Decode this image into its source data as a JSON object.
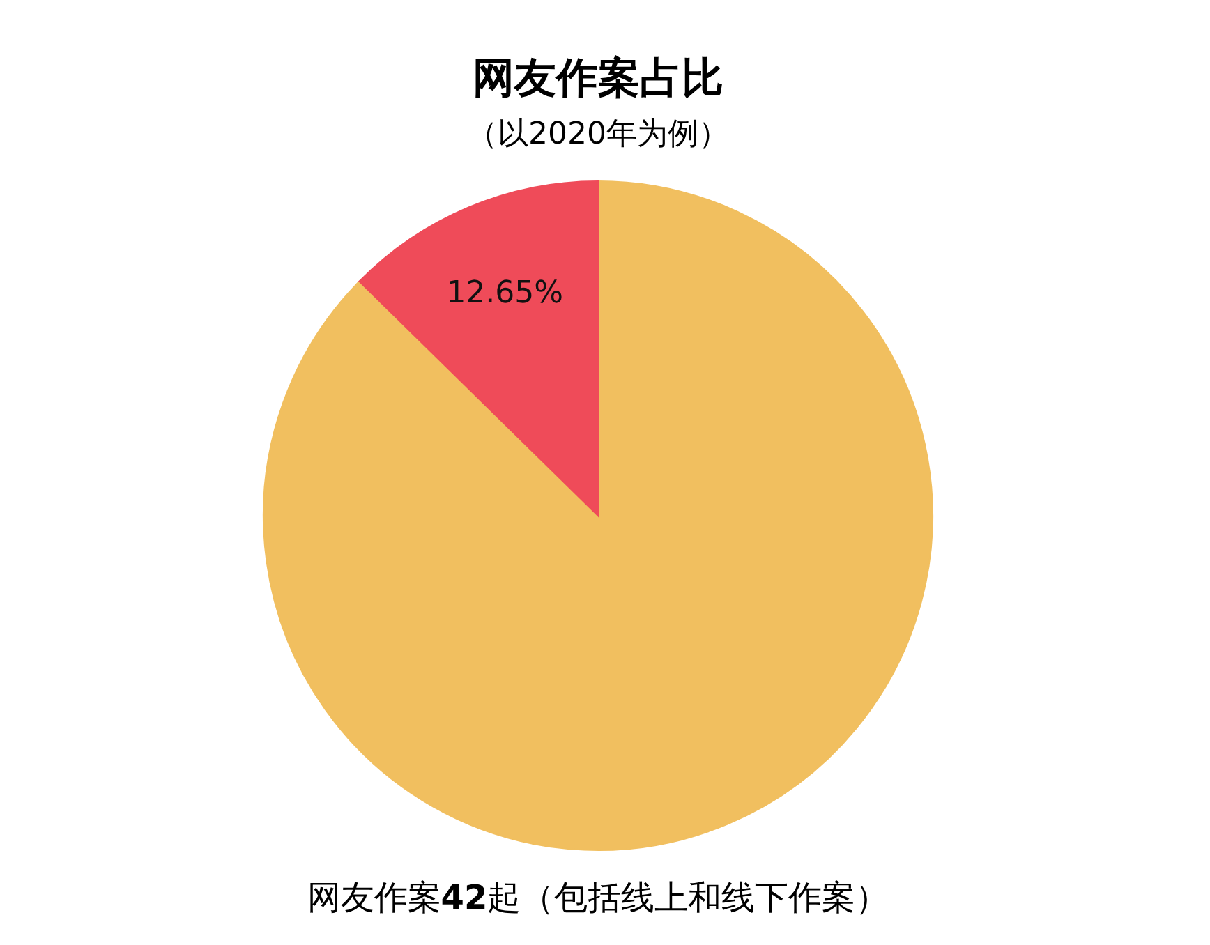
{
  "chart_data": {
    "type": "pie",
    "title": "网友作案占比",
    "subtitle": "（以2020年为例）",
    "categories": [
      null,
      null
    ],
    "values": [
      87.35,
      12.65
    ],
    "colors": [
      "#f1bf5f",
      "#ef4b59"
    ],
    "value_labels": [
      null,
      "12.65%"
    ],
    "annotations": [
      "网友作案42起（包括线上和线下作案）"
    ]
  }
}
